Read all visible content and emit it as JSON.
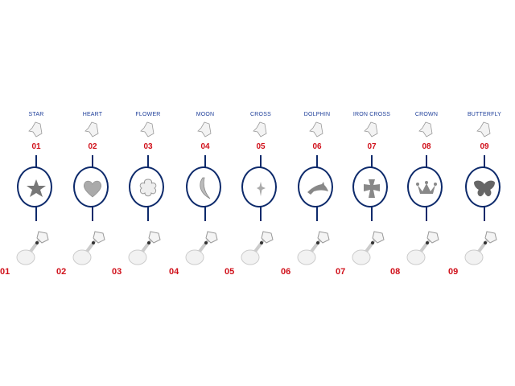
{
  "items": [
    {
      "name": "STAR",
      "number": "01",
      "shape": "star"
    },
    {
      "name": "HEART",
      "number": "02",
      "shape": "heart"
    },
    {
      "name": "FLOWER",
      "number": "03",
      "shape": "flower"
    },
    {
      "name": "MOON",
      "number": "04",
      "shape": "moon"
    },
    {
      "name": "CROSS",
      "number": "05",
      "shape": "cross"
    },
    {
      "name": "DOLPHIN",
      "number": "06",
      "shape": "dolphin"
    },
    {
      "name": "IRON CROSS",
      "number": "07",
      "shape": "iron-cross"
    },
    {
      "name": "CROWN",
      "number": "08",
      "shape": "crown"
    },
    {
      "name": "BUTTERFLY",
      "number": "09",
      "shape": "butterfly"
    }
  ],
  "colors": {
    "label": "#1f3f9a",
    "number": "#d0101a",
    "frame": "#0d2a6b"
  }
}
